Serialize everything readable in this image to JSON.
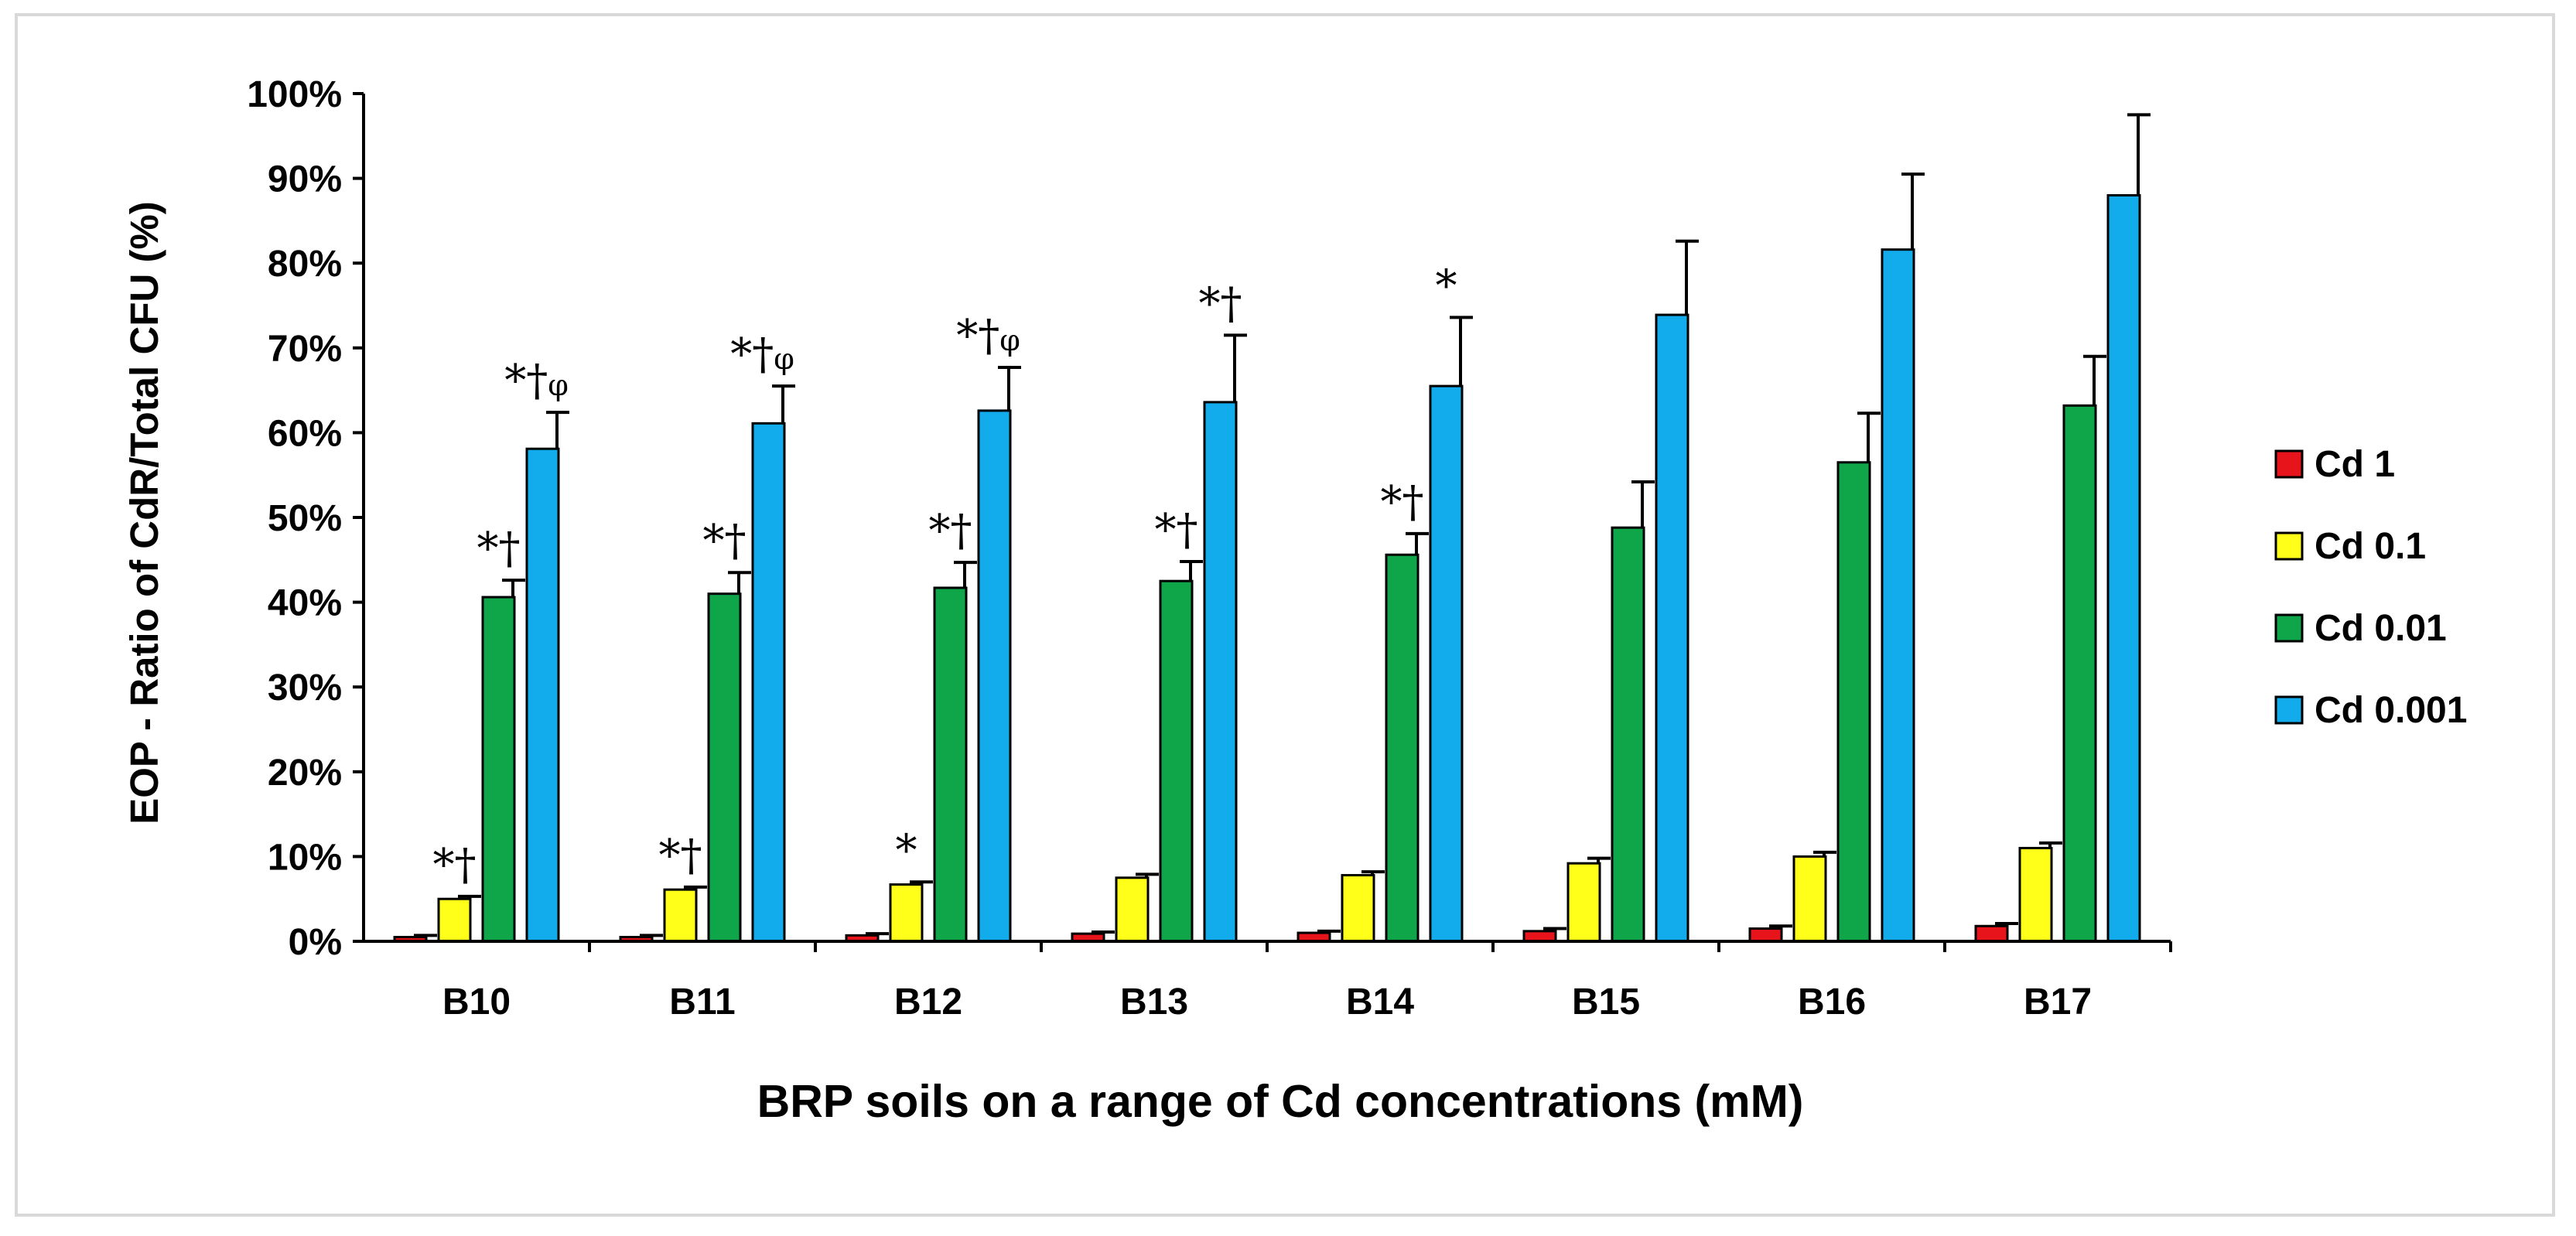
{
  "chart_data": {
    "type": "bar",
    "title": "",
    "xlabel": "BRP soils on a range of Cd concentrations (mM)",
    "ylabel": "EOP - Ratio of CdR/Total CFU (%)",
    "ylim": [
      0,
      100
    ],
    "yticks": [
      "0%",
      "10%",
      "20%",
      "30%",
      "40%",
      "50%",
      "60%",
      "70%",
      "80%",
      "90%",
      "100%"
    ],
    "categories": [
      "B10",
      "B11",
      "B12",
      "B13",
      "B14",
      "B15",
      "B16",
      "B17"
    ],
    "grid": false,
    "legend_position": "right",
    "series": [
      {
        "name": "Cd 1",
        "color": "#e8141b",
        "values": [
          0.5,
          0.5,
          0.7,
          0.9,
          1.0,
          1.2,
          1.5,
          1.8
        ],
        "errors": [
          0.2,
          0.2,
          0.2,
          0.2,
          0.2,
          0.3,
          0.3,
          0.3
        ],
        "annotations": [
          "",
          "",
          "",
          "",
          "",
          "",
          "",
          ""
        ]
      },
      {
        "name": "Cd 0.1",
        "color": "#ffff1a",
        "values": [
          5.0,
          6.1,
          6.7,
          7.5,
          7.8,
          9.2,
          10.0,
          11.0
        ],
        "errors": [
          0.3,
          0.3,
          0.3,
          0.4,
          0.4,
          0.6,
          0.5,
          0.6
        ],
        "annotations": [
          "*†",
          "*†",
          "*",
          "",
          "",
          "",
          "",
          ""
        ]
      },
      {
        "name": "Cd 0.01",
        "color": "#0fa64a",
        "values": [
          40.6,
          41.0,
          41.7,
          42.5,
          45.6,
          48.8,
          56.5,
          63.2
        ],
        "errors": [
          2.0,
          2.5,
          3.0,
          2.3,
          2.5,
          5.4,
          5.8,
          5.8
        ],
        "annotations": [
          "*†",
          "*†",
          "*†",
          "*†",
          "*†",
          "",
          "",
          ""
        ]
      },
      {
        "name": "Cd 0.001",
        "color": "#12aced",
        "values": [
          58.1,
          61.1,
          62.6,
          63.6,
          65.5,
          73.9,
          81.6,
          88.0
        ],
        "errors": [
          4.3,
          4.4,
          5.1,
          7.9,
          8.1,
          8.7,
          8.9,
          9.5
        ],
        "annotations": [
          "*†φ",
          "*†φ",
          "*†φ",
          "*†",
          "*",
          "",
          "",
          ""
        ]
      }
    ]
  }
}
